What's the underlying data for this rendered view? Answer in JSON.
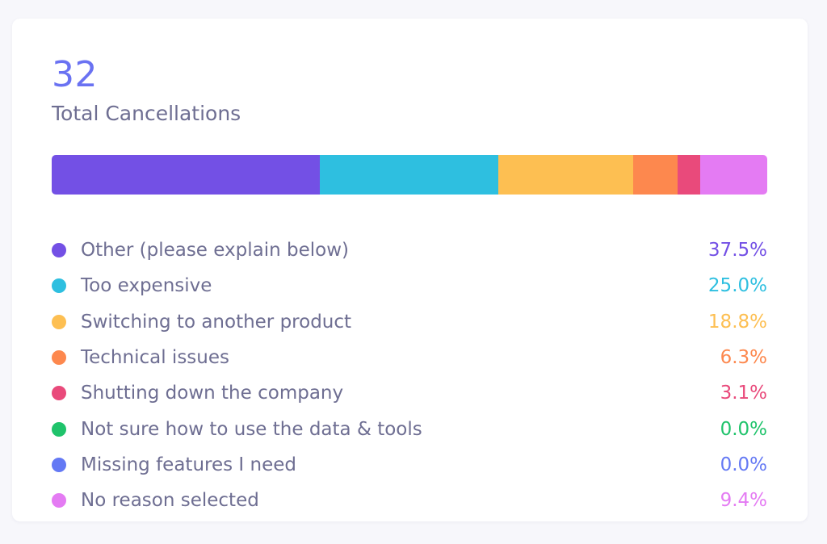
{
  "summary": {
    "total": "32",
    "title": "Total Cancellations"
  },
  "reasons": [
    {
      "label": "Other (please explain below)",
      "percent_text": "37.5%",
      "percent": 37.5,
      "color": "#7350e5",
      "icon": "other-dot-icon"
    },
    {
      "label": "Too expensive",
      "percent_text": "25.0%",
      "percent": 25.0,
      "color": "#2ebfe0",
      "icon": "expensive-dot-icon"
    },
    {
      "label": "Switching to another product",
      "percent_text": "18.8%",
      "percent": 18.8,
      "color": "#fdbf52",
      "icon": "switching-dot-icon"
    },
    {
      "label": "Technical issues",
      "percent_text": "6.3%",
      "percent": 6.3,
      "color": "#fd884e",
      "icon": "technical-dot-icon"
    },
    {
      "label": "Shutting down the company",
      "percent_text": "3.1%",
      "percent": 3.1,
      "color": "#e94a7b",
      "icon": "shutting-dot-icon"
    },
    {
      "label": "Not sure how to use the data & tools",
      "percent_text": "0.0%",
      "percent": 0.0,
      "color": "#1fc36b",
      "icon": "not-sure-dot-icon"
    },
    {
      "label": "Missing features I need",
      "percent_text": "0.0%",
      "percent": 0.0,
      "color": "#6479f4",
      "icon": "missing-features-dot-icon"
    },
    {
      "label": "No reason selected",
      "percent_text": "9.4%",
      "percent": 9.4,
      "color": "#e47bf3",
      "icon": "no-reason-dot-icon"
    }
  ]
}
